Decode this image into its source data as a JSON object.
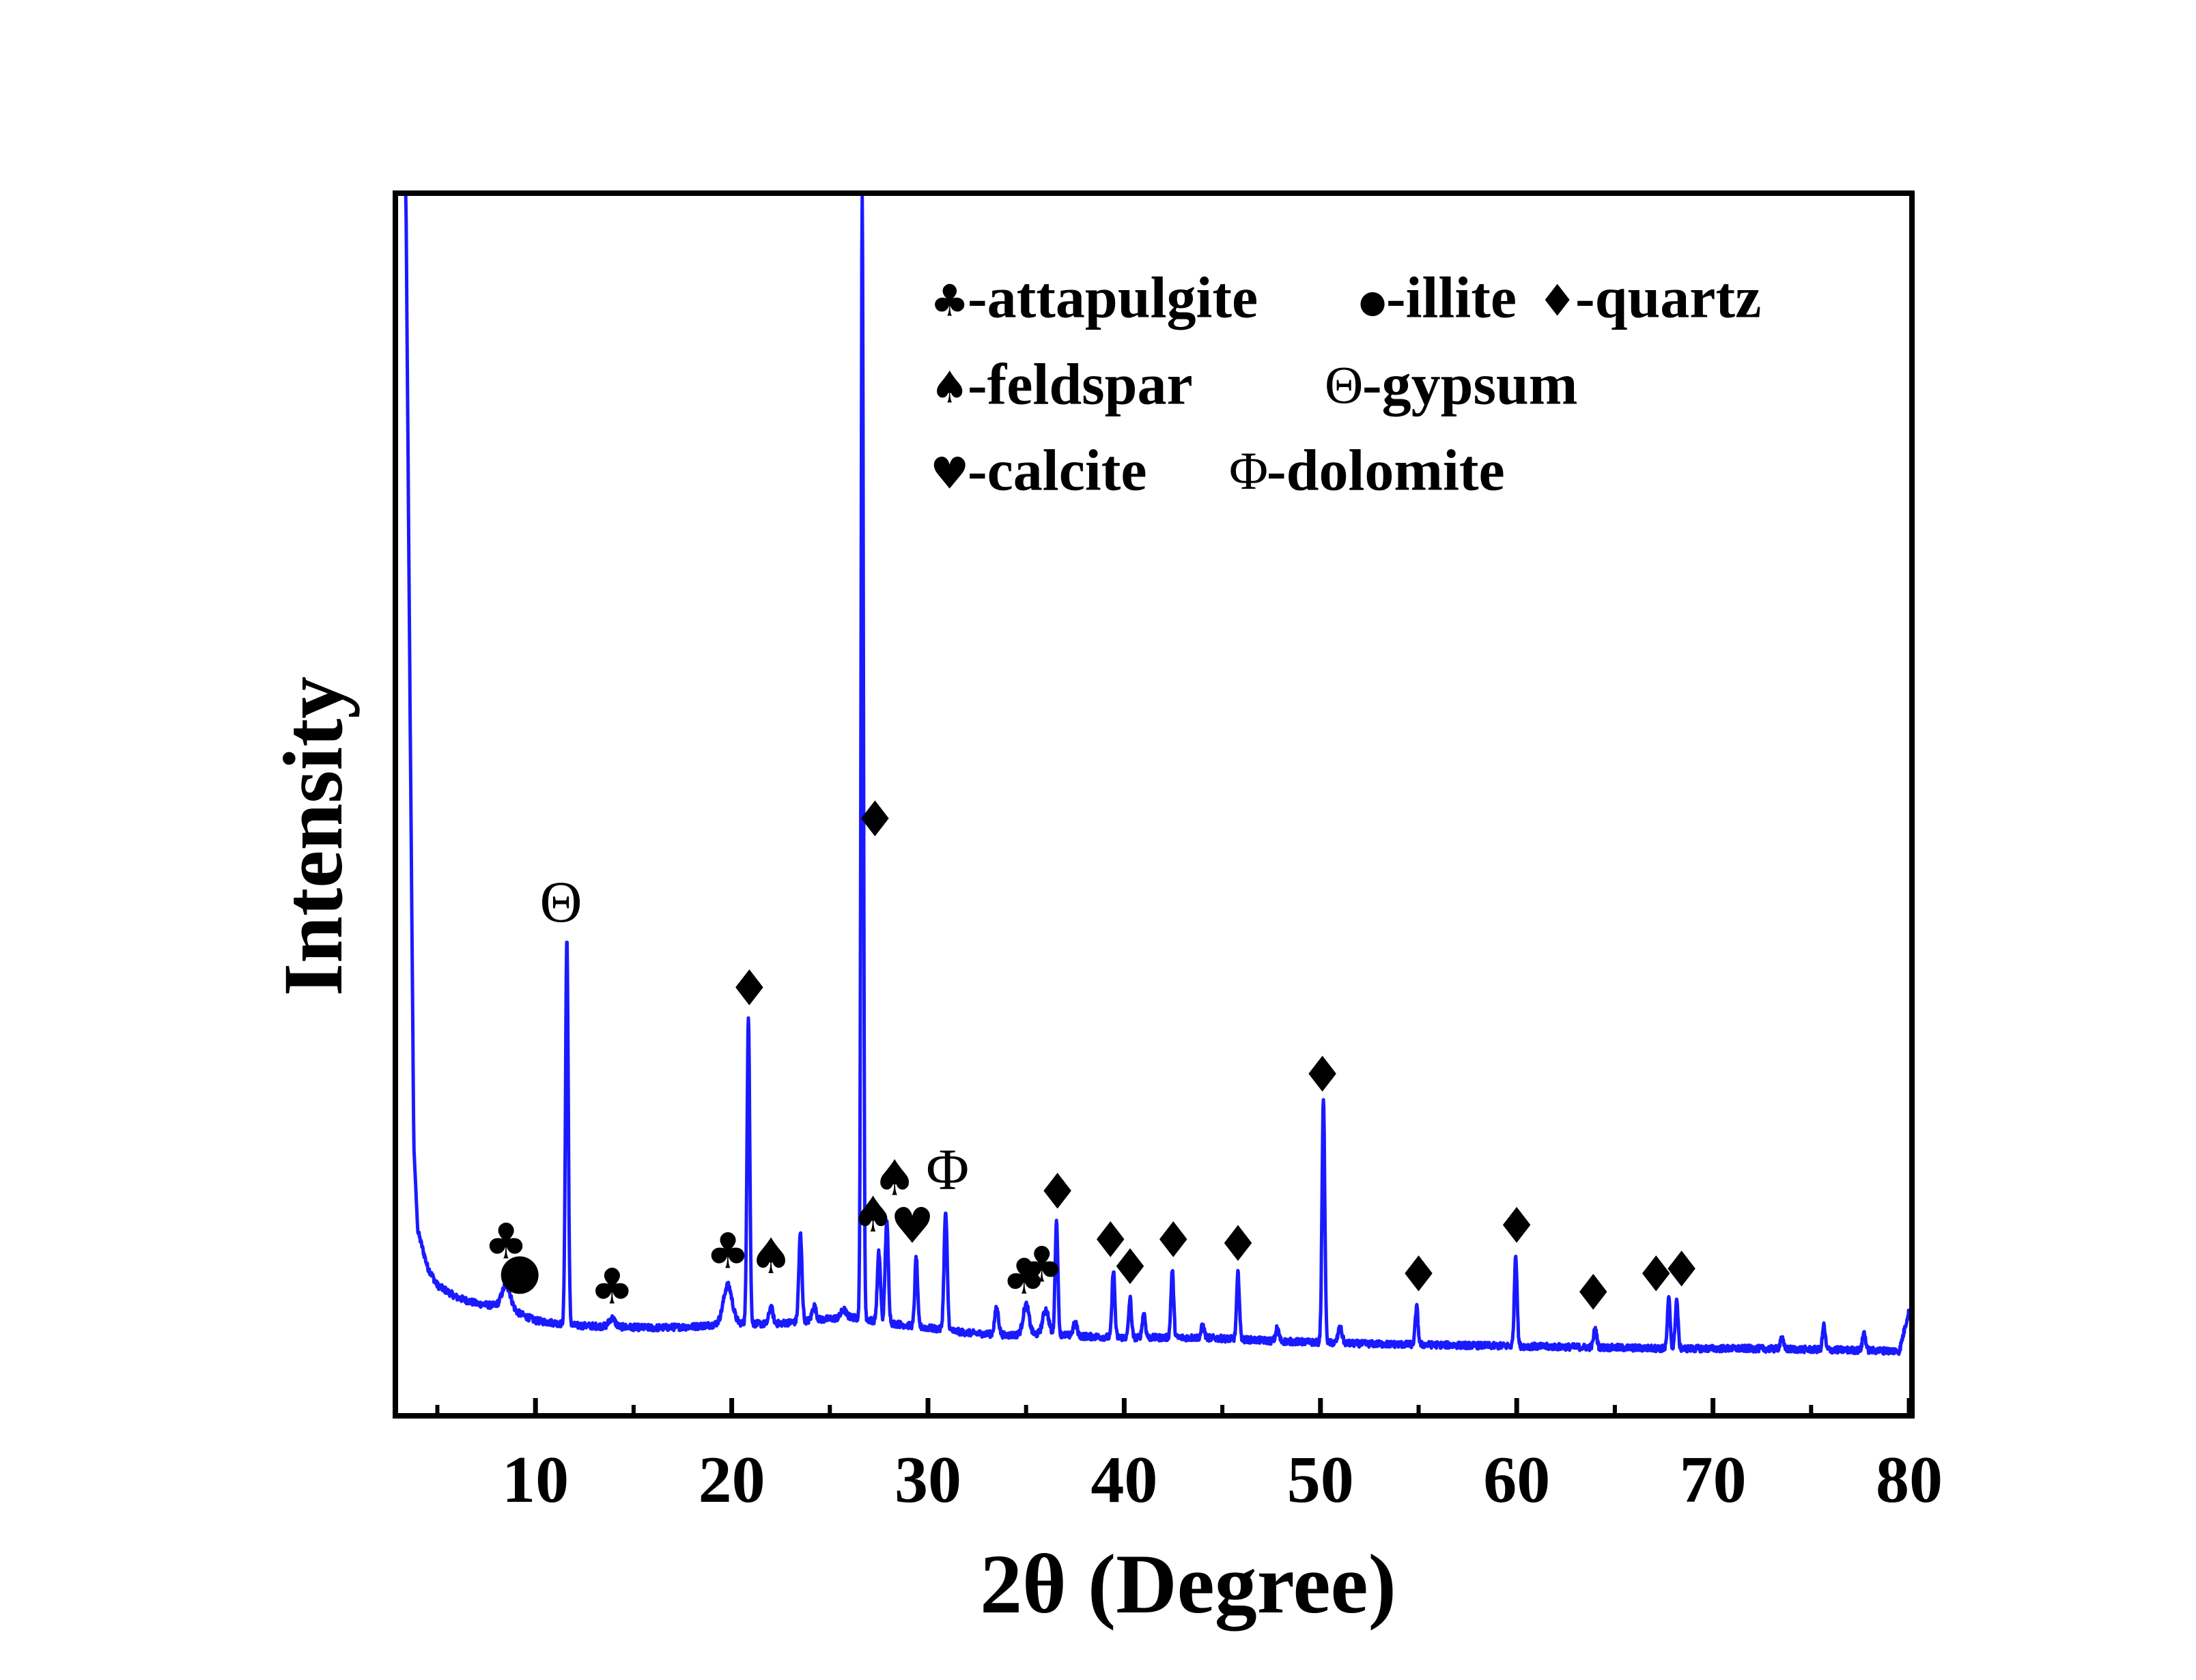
{
  "chart_data": {
    "type": "line",
    "xlabel": "2θ (Degree)",
    "ylabel": "Intensity",
    "xlim": [
      3,
      80
    ],
    "ylim": [
      0,
      100
    ],
    "x_ticks": [
      10,
      20,
      30,
      40,
      50,
      60,
      70,
      80
    ],
    "y_ticks_shown": false,
    "grid": false,
    "legend_position": "top-right",
    "line_color": "#1a1aff",
    "baseline": [
      [
        3.4,
        100
      ],
      [
        3.6,
        60
      ],
      [
        3.8,
        22
      ],
      [
        4.0,
        15
      ],
      [
        4.5,
        12
      ],
      [
        5,
        10.5
      ],
      [
        6,
        9.5
      ],
      [
        7,
        9
      ],
      [
        8,
        8.8
      ],
      [
        9,
        8.3
      ],
      [
        10,
        7.6
      ],
      [
        12,
        7.2
      ],
      [
        14,
        7.1
      ],
      [
        16,
        7.0
      ],
      [
        18,
        7.1
      ],
      [
        20,
        7.4
      ],
      [
        22,
        7.3
      ],
      [
        24,
        7.6
      ],
      [
        26,
        7.9
      ],
      [
        28,
        7.4
      ],
      [
        30,
        7.0
      ],
      [
        32,
        6.6
      ],
      [
        34,
        6.4
      ],
      [
        36,
        6.5
      ],
      [
        38,
        6.3
      ],
      [
        40,
        6.2
      ],
      [
        44,
        6.2
      ],
      [
        48,
        5.9
      ],
      [
        52,
        5.7
      ],
      [
        56,
        5.6
      ],
      [
        60,
        5.5
      ],
      [
        64,
        5.4
      ],
      [
        68,
        5.3
      ],
      [
        72,
        5.3
      ],
      [
        76,
        5.2
      ],
      [
        79.5,
        5.1
      ],
      [
        80,
        8.5
      ]
    ],
    "peaks": [
      {
        "x": 8.5,
        "height": 10.5,
        "width": 0.22
      },
      {
        "x": 11.6,
        "height": 39.0,
        "width": 0.07
      },
      {
        "x": 13.9,
        "height": 7.8,
        "width": 0.15
      },
      {
        "x": 19.8,
        "height": 10.5,
        "width": 0.22
      },
      {
        "x": 20.85,
        "height": 32.5,
        "width": 0.07
      },
      {
        "x": 22.0,
        "height": 8.7,
        "width": 0.1
      },
      {
        "x": 23.5,
        "height": 14.7,
        "width": 0.08
      },
      {
        "x": 24.2,
        "height": 8.8,
        "width": 0.1
      },
      {
        "x": 25.7,
        "height": 8.5,
        "width": 0.12
      },
      {
        "x": 26.65,
        "height": 100,
        "width": 0.06
      },
      {
        "x": 27.5,
        "height": 13.2,
        "width": 0.08
      },
      {
        "x": 27.9,
        "height": 15.8,
        "width": 0.08
      },
      {
        "x": 29.4,
        "height": 12.8,
        "width": 0.07
      },
      {
        "x": 30.9,
        "height": 16.5,
        "width": 0.08
      },
      {
        "x": 33.5,
        "height": 8.6,
        "width": 0.1
      },
      {
        "x": 35.0,
        "height": 8.9,
        "width": 0.15
      },
      {
        "x": 36.0,
        "height": 8.5,
        "width": 0.15
      },
      {
        "x": 36.55,
        "height": 15.8,
        "width": 0.07
      },
      {
        "x": 37.5,
        "height": 7.4,
        "width": 0.1
      },
      {
        "x": 39.45,
        "height": 11.8,
        "width": 0.07
      },
      {
        "x": 40.3,
        "height": 9.4,
        "width": 0.07
      },
      {
        "x": 41.0,
        "height": 8.2,
        "width": 0.08
      },
      {
        "x": 42.45,
        "height": 11.7,
        "width": 0.07
      },
      {
        "x": 44.0,
        "height": 7.2,
        "width": 0.08
      },
      {
        "x": 45.8,
        "height": 11.5,
        "width": 0.07
      },
      {
        "x": 47.8,
        "height": 7.0,
        "width": 0.08
      },
      {
        "x": 50.15,
        "height": 25.8,
        "width": 0.07
      },
      {
        "x": 51.0,
        "height": 7.0,
        "width": 0.1
      },
      {
        "x": 54.9,
        "height": 8.7,
        "width": 0.07
      },
      {
        "x": 59.95,
        "height": 13.0,
        "width": 0.07
      },
      {
        "x": 64.0,
        "height": 6.9,
        "width": 0.08
      },
      {
        "x": 67.75,
        "height": 9.4,
        "width": 0.07
      },
      {
        "x": 68.15,
        "height": 9.3,
        "width": 0.07
      },
      {
        "x": 73.5,
        "height": 6.2,
        "width": 0.08
      },
      {
        "x": 75.65,
        "height": 7.2,
        "width": 0.07
      },
      {
        "x": 77.7,
        "height": 6.6,
        "width": 0.08
      }
    ],
    "legend": [
      {
        "symbol": "♣",
        "label": "-attapulgite"
      },
      {
        "symbol": "●",
        "label": "-illite"
      },
      {
        "symbol": "♦",
        "label": "-quartz"
      },
      {
        "symbol": "♠",
        "label": "-feldspar"
      },
      {
        "symbol": "Θ",
        "label": "-gypsum"
      },
      {
        "symbol": "♥",
        "label": "-calcite"
      },
      {
        "symbol": "Φ",
        "label": "-dolomite"
      }
    ],
    "peak_markers": [
      {
        "symbol": "♣",
        "x": 8.5,
        "y": 13.8
      },
      {
        "symbol": "●",
        "x": 9.2,
        "y": 11.4
      },
      {
        "symbol": "Θ",
        "x": 11.3,
        "y": 41.5
      },
      {
        "symbol": "♣",
        "x": 13.9,
        "y": 10.1
      },
      {
        "symbol": "♣",
        "x": 19.8,
        "y": 13.0
      },
      {
        "symbol": "♠",
        "x": 22.0,
        "y": 12.6
      },
      {
        "symbol": "♦",
        "x": 20.9,
        "y": 34.6
      },
      {
        "symbol": "♦",
        "x": 27.3,
        "y": 48.5
      },
      {
        "symbol": "♠",
        "x": 27.2,
        "y": 16.0
      },
      {
        "symbol": "♠",
        "x": 28.3,
        "y": 19.0
      },
      {
        "symbol": "♥",
        "x": 29.2,
        "y": 15.1
      },
      {
        "symbol": "Φ",
        "x": 31.0,
        "y": 19.5
      },
      {
        "symbol": "♣",
        "x": 34.9,
        "y": 10.9
      },
      {
        "symbol": "♣",
        "x": 35.8,
        "y": 11.9
      },
      {
        "symbol": "♦",
        "x": 36.6,
        "y": 17.9
      },
      {
        "symbol": "♦",
        "x": 39.3,
        "y": 13.9
      },
      {
        "symbol": "♦",
        "x": 40.3,
        "y": 11.7
      },
      {
        "symbol": "♦",
        "x": 42.5,
        "y": 13.9
      },
      {
        "symbol": "♦",
        "x": 45.8,
        "y": 13.6
      },
      {
        "symbol": "♦",
        "x": 50.1,
        "y": 27.5
      },
      {
        "symbol": "♦",
        "x": 55.0,
        "y": 11.1
      },
      {
        "symbol": "♦",
        "x": 60.0,
        "y": 15.1
      },
      {
        "symbol": "♦",
        "x": 63.9,
        "y": 9.6
      },
      {
        "symbol": "♦",
        "x": 67.1,
        "y": 11.1
      },
      {
        "symbol": "♦",
        "x": 68.4,
        "y": 11.5
      }
    ]
  }
}
